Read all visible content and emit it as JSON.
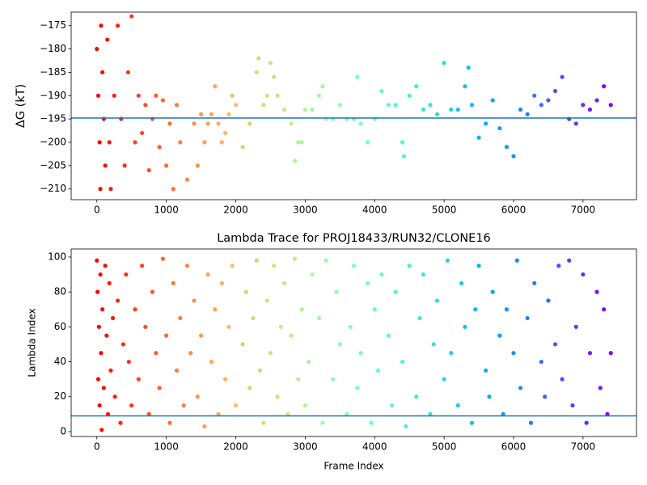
{
  "chart_data": [
    {
      "type": "scatter",
      "ylabel": "ΔG (kT)",
      "colormap": "rainbow_r",
      "x": [
        0,
        20,
        40,
        50,
        60,
        80,
        100,
        120,
        150,
        180,
        200,
        250,
        300,
        350,
        400,
        450,
        500,
        550,
        600,
        650,
        700,
        750,
        800,
        850,
        900,
        950,
        1000,
        1050,
        1100,
        1150,
        1200,
        1300,
        1400,
        1450,
        1500,
        1550,
        1600,
        1650,
        1700,
        1750,
        1800,
        1850,
        1900,
        1950,
        2000,
        2100,
        2200,
        2300,
        2330,
        2400,
        2450,
        2500,
        2550,
        2600,
        2700,
        2800,
        2850,
        2900,
        2950,
        3000,
        3100,
        3200,
        3250,
        3300,
        3400,
        3500,
        3600,
        3700,
        3750,
        3800,
        3900,
        4000,
        4100,
        4200,
        4300,
        4400,
        4420,
        4500,
        4600,
        4700,
        4800,
        4900,
        5000,
        5100,
        5200,
        5300,
        5350,
        5400,
        5500,
        5600,
        5700,
        5800,
        5900,
        6000,
        6100,
        6200,
        6300,
        6400,
        6500,
        6600,
        6700,
        6800,
        6900,
        7000,
        7100,
        7200,
        7300,
        7400
      ],
      "values": [
        -180,
        -190,
        -200,
        -210,
        -175,
        -185,
        -195,
        -205,
        -178,
        -200,
        -210,
        -190,
        -175,
        -195,
        -205,
        -185,
        -173,
        -200,
        -190,
        -198,
        -192,
        -206,
        -195,
        -190,
        -201,
        -191,
        -205,
        -196,
        -210,
        -192,
        -200,
        -208,
        -196,
        -205,
        -194,
        -200,
        -196,
        -194,
        -188,
        -196,
        -200,
        -198,
        -194,
        -190,
        -192,
        -201,
        -196,
        -185,
        -182,
        -192,
        -190,
        -183,
        -186,
        -190,
        -193,
        -196,
        -204,
        -200,
        -200,
        -193,
        -193,
        -190,
        -188,
        -195,
        -195,
        -192,
        -195,
        -195,
        -186,
        -196,
        -200,
        -195,
        -189,
        -192,
        -192,
        -200,
        -203,
        -190,
        -188,
        -193,
        -192,
        -194,
        -183,
        -193,
        -193,
        -188,
        -184,
        -192,
        -199,
        -196,
        -191,
        -197,
        -201,
        -203,
        -193,
        -194,
        -190,
        -192,
        -191,
        -189,
        -186,
        -195,
        -196,
        -192,
        -193,
        -191,
        -188,
        -192
      ],
      "reference_line": {
        "value": -194.8,
        "color": "#1f77b4"
      },
      "xlim": [
        -370,
        7770
      ],
      "ylim": [
        -212.3,
        -172.1
      ],
      "xticks": [
        0,
        1000,
        2000,
        3000,
        4000,
        5000,
        6000,
        7000
      ],
      "yticks": [
        {
          "value": -175,
          "label": "−175"
        },
        {
          "value": -180,
          "label": "−180"
        },
        {
          "value": -185,
          "label": "−185"
        },
        {
          "value": -190,
          "label": "−190"
        },
        {
          "value": -195,
          "label": "−195"
        },
        {
          "value": -200,
          "label": "−200"
        },
        {
          "value": -205,
          "label": "−205"
        },
        {
          "value": -210,
          "label": "−210"
        }
      ]
    },
    {
      "type": "scatter",
      "title": "Lambda Trace for PROJ18433/RUN32/CLONE16",
      "xlabel": "Frame Index",
      "ylabel": "Lambda Index",
      "colormap": "rainbow_r",
      "x": [
        0,
        10,
        20,
        30,
        40,
        50,
        60,
        70,
        80,
        100,
        120,
        140,
        160,
        180,
        200,
        230,
        260,
        300,
        340,
        380,
        420,
        460,
        500,
        550,
        600,
        650,
        700,
        750,
        800,
        850,
        900,
        950,
        1000,
        1050,
        1100,
        1150,
        1200,
        1250,
        1300,
        1350,
        1400,
        1450,
        1500,
        1550,
        1600,
        1650,
        1700,
        1750,
        1800,
        1850,
        1900,
        1950,
        2000,
        2100,
        2150,
        2200,
        2250,
        2300,
        2350,
        2400,
        2450,
        2500,
        2550,
        2600,
        2650,
        2700,
        2750,
        2800,
        2850,
        2900,
        2950,
        3000,
        3050,
        3100,
        3200,
        3250,
        3300,
        3400,
        3450,
        3500,
        3600,
        3650,
        3700,
        3750,
        3800,
        3900,
        3950,
        4000,
        4050,
        4100,
        4200,
        4250,
        4300,
        4400,
        4450,
        4500,
        4600,
        4650,
        4700,
        4800,
        4850,
        4900,
        5000,
        5050,
        5100,
        5200,
        5250,
        5300,
        5400,
        5450,
        5500,
        5600,
        5650,
        5700,
        5800,
        5850,
        5900,
        6000,
        6050,
        6100,
        6200,
        6250,
        6300,
        6400,
        6450,
        6500,
        6600,
        6650,
        6700,
        6800,
        6850,
        6900,
        7000,
        7050,
        7100,
        7200,
        7250,
        7300,
        7350,
        7400
      ],
      "values": [
        98,
        80,
        30,
        60,
        15,
        90,
        45,
        1,
        70,
        25,
        95,
        55,
        10,
        85,
        35,
        65,
        20,
        75,
        5,
        50,
        90,
        40,
        15,
        70,
        30,
        95,
        60,
        10,
        80,
        45,
        25,
        99,
        55,
        5,
        85,
        35,
        65,
        15,
        95,
        45,
        75,
        20,
        55,
        3,
        90,
        40,
        70,
        10,
        85,
        30,
        60,
        95,
        15,
        50,
        80,
        25,
        65,
        98,
        35,
        5,
        75,
        45,
        95,
        20,
        60,
        85,
        10,
        55,
        99,
        30,
        70,
        15,
        40,
        90,
        65,
        5,
        98,
        30,
        80,
        50,
        10,
        60,
        95,
        25,
        45,
        85,
        5,
        70,
        35,
        90,
        55,
        15,
        80,
        40,
        3,
        95,
        20,
        65,
        90,
        10,
        50,
        75,
        30,
        98,
        45,
        15,
        85,
        60,
        5,
        70,
        95,
        35,
        20,
        80,
        55,
        10,
        70,
        45,
        98,
        25,
        65,
        5,
        85,
        40,
        20,
        75,
        50,
        95,
        30,
        98,
        15,
        60,
        90,
        5,
        45,
        80,
        25,
        70,
        10,
        45
      ],
      "reference_line": {
        "value": 9,
        "color": "#1f77b4"
      },
      "xlim": [
        -370,
        7770
      ],
      "ylim": [
        -2.8,
        104.6
      ],
      "xticks": [
        0,
        1000,
        2000,
        3000,
        4000,
        5000,
        6000,
        7000
      ],
      "yticks": [
        0,
        20,
        40,
        60,
        80,
        100
      ]
    }
  ]
}
